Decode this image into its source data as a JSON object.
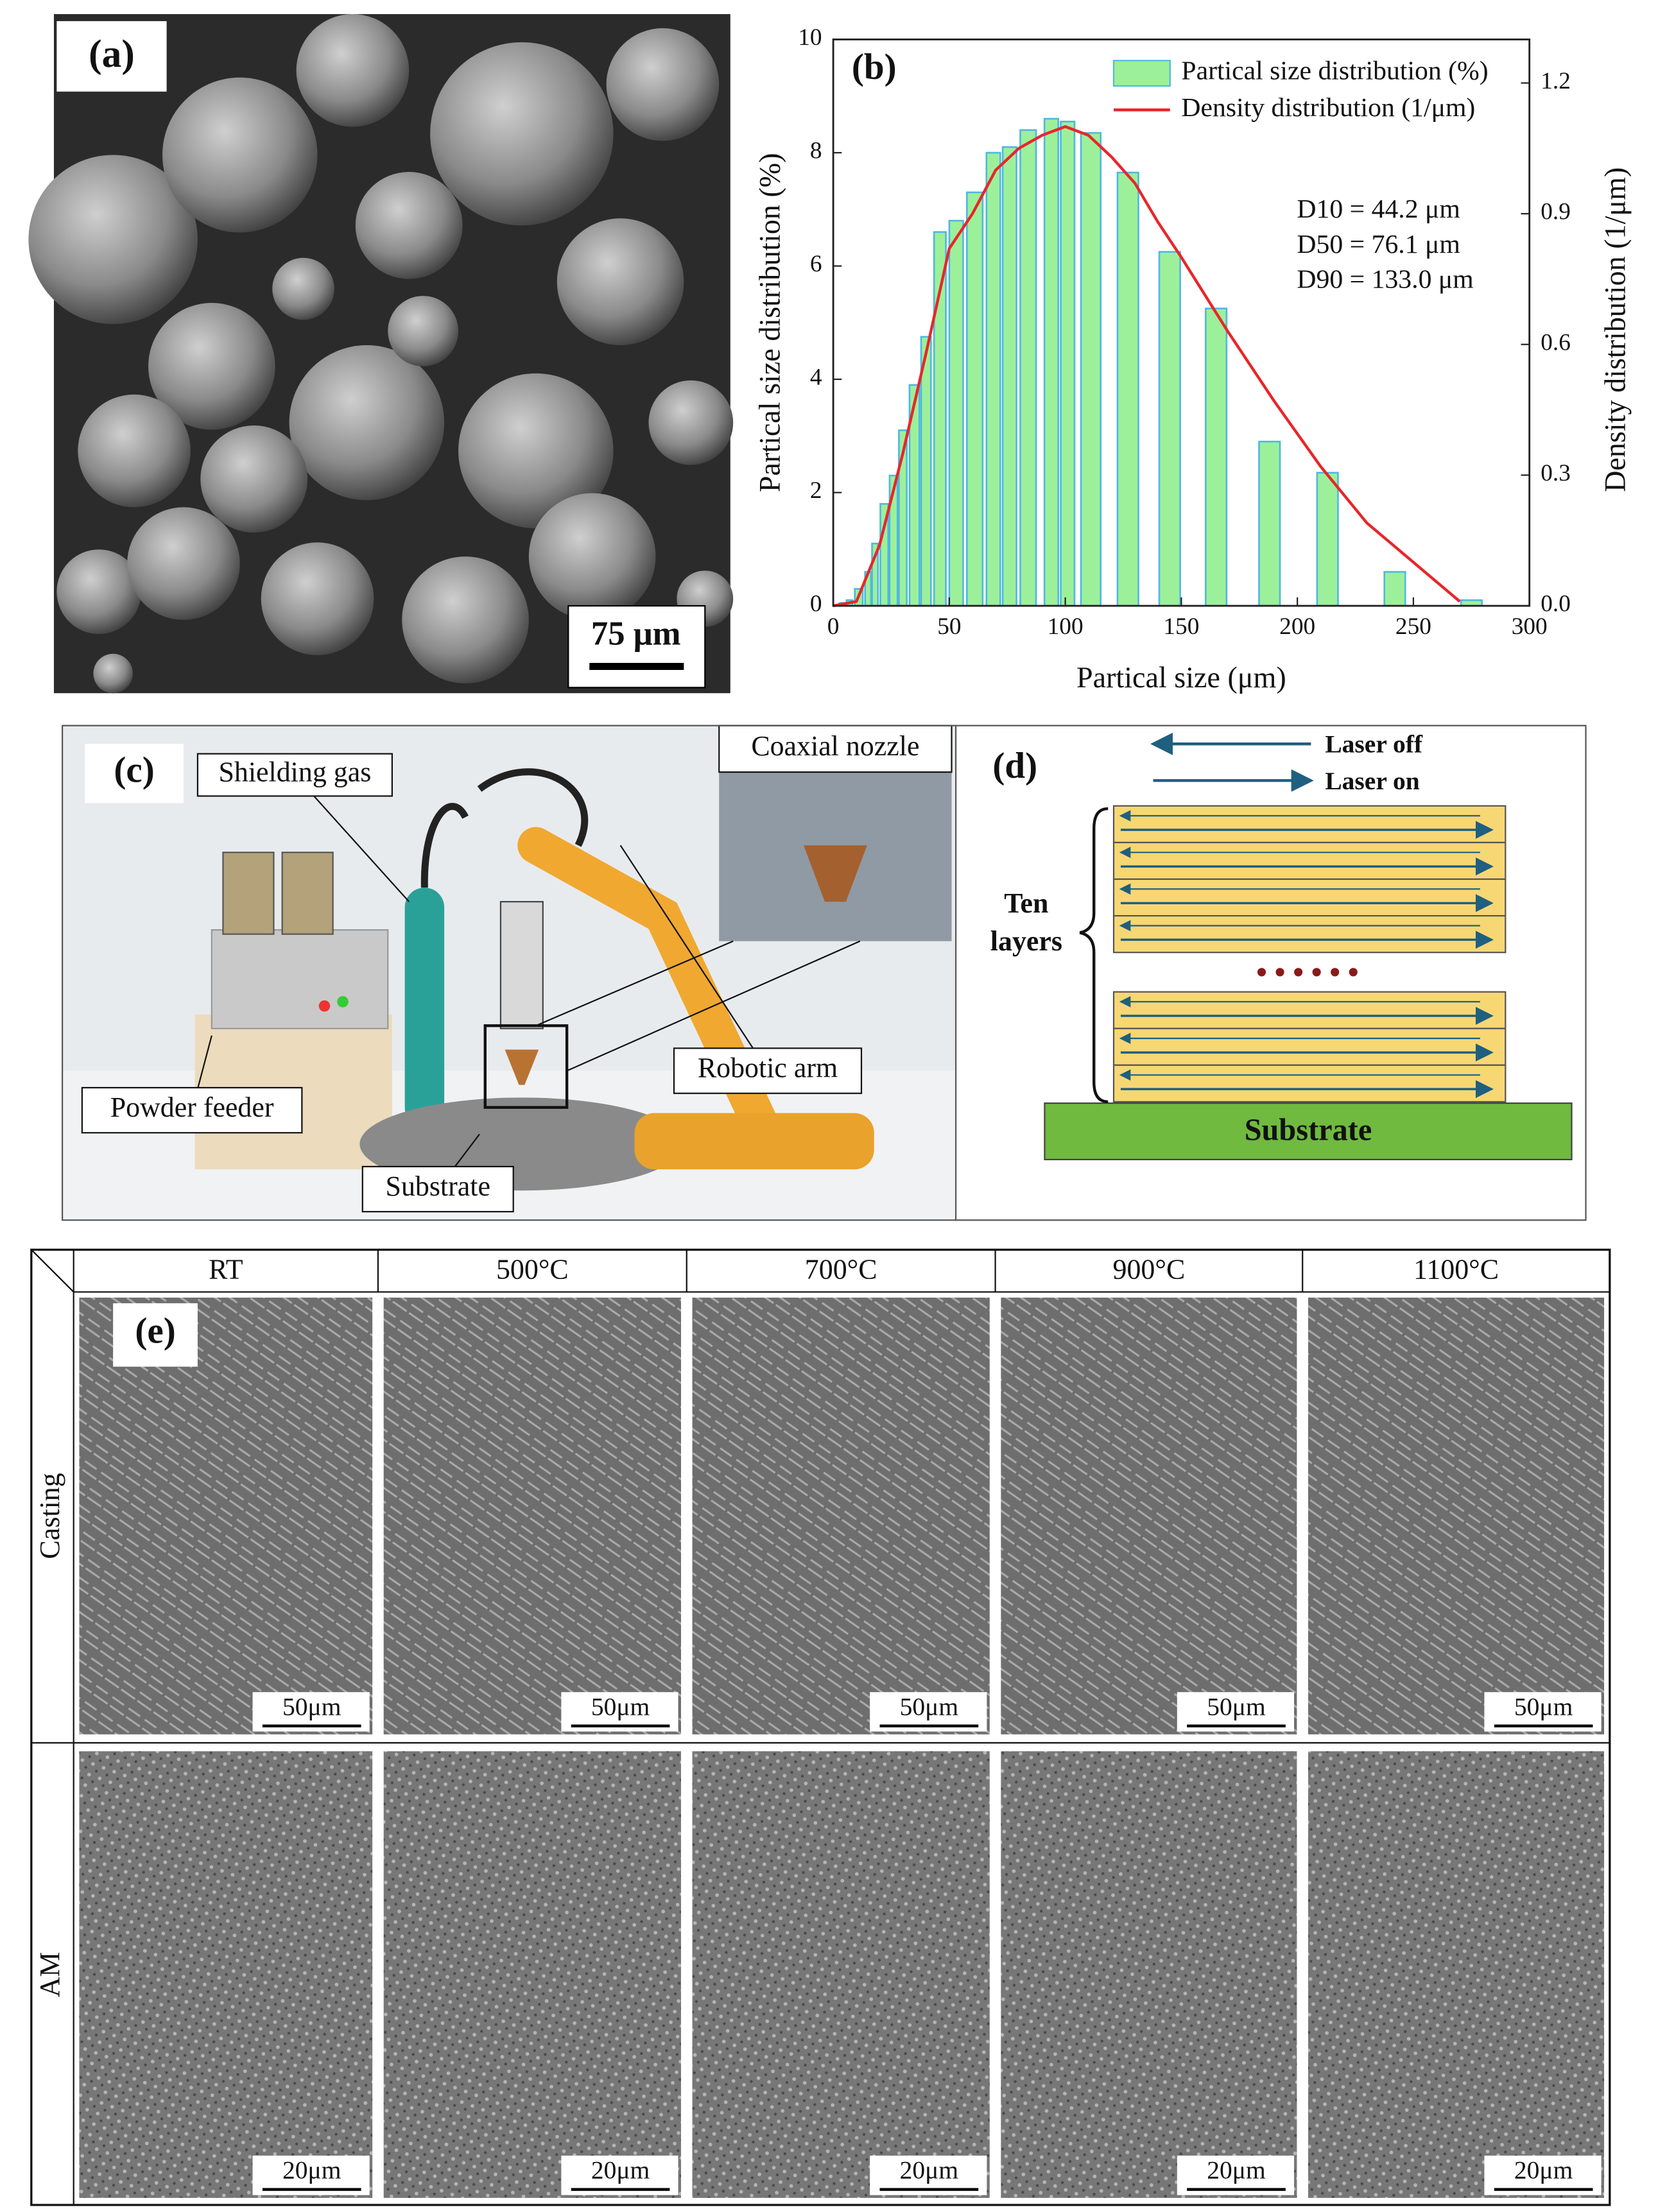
{
  "panel_a": {
    "label": "(a)",
    "scale_bar": "75 μm"
  },
  "chart_data": {
    "type": "bar",
    "panel_label": "(b)",
    "x_label": "Partical size (μm)",
    "y_label": "Partical size distribution (%)",
    "y2_label": "Density distribution (1/μm)",
    "annotations": [
      "D10 = 44.2 μm",
      "D50 = 76.1 μm",
      "D90 = 133.0 μm"
    ],
    "xlim": [
      0,
      300
    ],
    "xticks": [
      0,
      50,
      100,
      150,
      200,
      250,
      300
    ],
    "ylim": [
      0,
      10
    ],
    "yticks": [
      0,
      2,
      4,
      6,
      8,
      10
    ],
    "y2lim": [
      0,
      1.3
    ],
    "y2ticks": [
      {
        "value": 0,
        "label": "0.0"
      },
      0.3,
      0.6,
      0.9,
      1.2
    ],
    "legend": "upper right",
    "series": [
      {
        "name": "Partical size distribution (%)",
        "type": "bar",
        "color": "#9df09a",
        "edge_color": "#4fb8e0",
        "x": [
          4,
          7,
          11,
          15,
          18,
          22,
          26,
          30,
          35,
          40,
          46,
          53,
          61,
          69,
          76,
          84,
          94,
          101,
          111,
          127,
          145,
          165,
          188,
          213,
          242,
          275
        ],
        "values": [
          0.05,
          0.1,
          0.3,
          0.6,
          1.1,
          1.8,
          2.3,
          3.1,
          3.9,
          4.75,
          6.6,
          6.8,
          7.3,
          8.0,
          8.1,
          8.4,
          8.6,
          8.55,
          8.35,
          7.65,
          6.25,
          5.25,
          2.9,
          2.35,
          0.6,
          0.1
        ]
      },
      {
        "name": "Density distribution (1/μm)",
        "type": "line",
        "axis": "y2",
        "color": "#e8262a",
        "x": [
          0,
          10,
          20,
          30,
          40,
          50,
          60,
          70,
          80,
          90,
          100,
          110,
          120,
          130,
          140,
          150,
          170,
          190,
          210,
          230,
          250,
          270
        ],
        "values": [
          0,
          0.01,
          0.14,
          0.35,
          0.58,
          0.82,
          0.9,
          1.0,
          1.05,
          1.08,
          1.1,
          1.08,
          1.03,
          0.97,
          0.88,
          0.8,
          0.63,
          0.47,
          0.32,
          0.19,
          0.1,
          0.01
        ]
      }
    ]
  },
  "panel_c": {
    "label": "(c)",
    "callouts": [
      "Shielding gas",
      "Coaxial nozzle",
      "Robotic arm",
      "Powder feeder",
      "Substrate"
    ]
  },
  "panel_d": {
    "label": "(d)",
    "laser_off": "Laser off",
    "laser_on": "Laser on",
    "brace_label": [
      "Ten",
      "layers"
    ],
    "substrate": "Substrate"
  },
  "panel_e": {
    "label": "(e)",
    "columns": [
      "RT",
      "500°C",
      "700°C",
      "900°C",
      "1100°C"
    ],
    "rows": [
      {
        "name": "Casting",
        "scale_bar": "50μm"
      },
      {
        "name": "AM",
        "scale_bar": "20μm"
      }
    ]
  }
}
